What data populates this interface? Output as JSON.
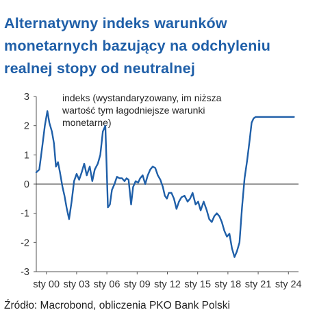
{
  "chart_data": {
    "type": "line",
    "title": "Alternatywny indeks warunków monetarnych bazujący na odchyleniu realnej stopy od neutralnej",
    "annotation": [
      "indeks (wystandaryzowany, im niższa",
      "wartość tym łagodniejsze warunki",
      "monetarne)"
    ],
    "xlabel": "",
    "ylabel": "",
    "ylim": [
      -3,
      3
    ],
    "xlim": [
      1999.0,
      2025.0
    ],
    "yticks": [
      {
        "value": 3,
        "label": "3"
      },
      {
        "value": 2,
        "label": "2"
      },
      {
        "value": 1,
        "label": "1"
      },
      {
        "value": 0,
        "label": "0"
      },
      {
        "value": -1,
        "label": "-1"
      },
      {
        "value": -2,
        "label": "-2"
      },
      {
        "value": -3,
        "label": "-3"
      }
    ],
    "xticks": [
      {
        "value": 2000,
        "label": "sty 00"
      },
      {
        "value": 2003,
        "label": "sty 03"
      },
      {
        "value": 2006,
        "label": "sty 06"
      },
      {
        "value": 2009,
        "label": "sty 09"
      },
      {
        "value": 2012,
        "label": "sty 12"
      },
      {
        "value": 2015,
        "label": "sty 15"
      },
      {
        "value": 2018,
        "label": "sty 18"
      },
      {
        "value": 2021,
        "label": "sty 21"
      },
      {
        "value": 2024,
        "label": "sty 24"
      }
    ],
    "grid": false,
    "zero_line": true,
    "series": [
      {
        "name": "",
        "color": "#1f5fa8",
        "x": [
          1999.0,
          1999.3,
          1999.6,
          1999.85,
          2000.1,
          2000.3,
          2000.55,
          2000.75,
          2000.95,
          2001.15,
          2001.35,
          2001.6,
          2001.8,
          2002.0,
          2002.25,
          2002.5,
          2002.75,
          2003.0,
          2003.25,
          2003.5,
          2003.75,
          2004.0,
          2004.3,
          2004.55,
          2004.8,
          2005.1,
          2005.35,
          2005.6,
          2005.85,
          2006.1,
          2006.3,
          2006.5,
          2006.75,
          2007.0,
          2007.25,
          2007.5,
          2007.75,
          2007.95,
          2008.15,
          2008.4,
          2008.6,
          2008.85,
          2009.1,
          2009.3,
          2009.55,
          2009.8,
          2010.05,
          2010.3,
          2010.55,
          2010.8,
          2011.05,
          2011.3,
          2011.55,
          2011.75,
          2011.95,
          2012.15,
          2012.4,
          2012.65,
          2012.9,
          2013.15,
          2013.4,
          2013.7,
          2014.0,
          2014.25,
          2014.5,
          2014.8,
          2015.05,
          2015.3,
          2015.6,
          2015.9,
          2016.15,
          2016.4,
          2016.65,
          2016.9,
          2017.15,
          2017.4,
          2017.65,
          2017.9,
          2018.15,
          2018.4,
          2018.65,
          2018.9,
          2019.15,
          2019.4,
          2019.65,
          2019.9,
          2020.15,
          2020.35,
          2020.55,
          2020.75,
          2021.0,
          2021.25,
          2021.5,
          2021.75,
          2022.0,
          2022.2,
          2022.4,
          2022.6,
          2022.8,
          2023.0,
          2023.2,
          2023.4,
          2023.6,
          2023.8,
          2024.0,
          2024.2,
          2024.4,
          2024.55
        ],
        "values": [
          0.4,
          0.5,
          1.3,
          2.0,
          2.5,
          2.1,
          1.8,
          1.4,
          0.6,
          0.75,
          0.4,
          -0.1,
          -0.4,
          -0.8,
          -1.2,
          -0.6,
          0.1,
          0.35,
          0.15,
          0.4,
          0.7,
          0.3,
          0.6,
          0.1,
          0.5,
          0.7,
          1.0,
          1.8,
          2.0,
          -0.8,
          -0.7,
          -0.2,
          0.0,
          0.25,
          0.2,
          0.2,
          0.1,
          0.2,
          0.15,
          -0.7,
          -0.1,
          0.1,
          0.05,
          0.2,
          0.3,
          0.0,
          0.3,
          0.5,
          0.6,
          0.55,
          0.3,
          0.15,
          -0.1,
          -0.4,
          -0.5,
          -0.3,
          -0.3,
          -0.5,
          -0.85,
          -0.6,
          -0.45,
          -0.4,
          -0.6,
          -0.5,
          -0.3,
          -0.7,
          -0.6,
          -0.9,
          -0.6,
          -0.9,
          -1.2,
          -1.3,
          -1.1,
          -1.0,
          -1.1,
          -1.3,
          -1.6,
          -1.8,
          -1.7,
          -2.2,
          -2.5,
          -2.3,
          -2.0,
          -0.8,
          0.2,
          0.8,
          1.5,
          2.1,
          2.25,
          2.3,
          2.3,
          2.3,
          2.3,
          2.3,
          2.3,
          2.3,
          2.3,
          2.3,
          2.3,
          2.3,
          2.3,
          2.3,
          2.3,
          2.3,
          2.3,
          2.3,
          2.3,
          2.3
        ]
      }
    ]
  },
  "source": "Źródło: Macrobond, obliczenia PKO Bank Polski"
}
